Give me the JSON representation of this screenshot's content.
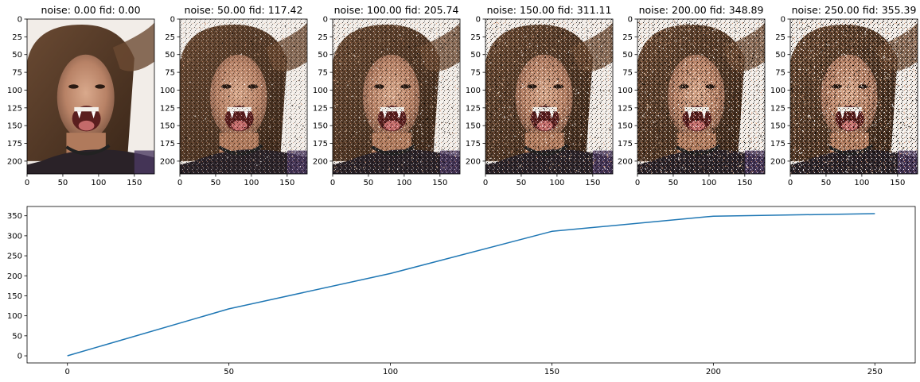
{
  "figure": {
    "panels": [
      {
        "title": "noise: 0.00 fid: 0.00",
        "noise_level": 0
      },
      {
        "title": "noise: 50.00 fid: 117.42",
        "noise_level": 50
      },
      {
        "title": "noise: 100.00 fid: 205.74",
        "noise_level": 100
      },
      {
        "title": "noise: 150.00 fid: 311.11",
        "noise_level": 150
      },
      {
        "title": "noise: 200.00 fid: 348.89",
        "noise_level": 200
      },
      {
        "title": "noise: 250.00 fid: 355.39",
        "noise_level": 250
      }
    ],
    "panel_axes": {
      "x_ticks": [
        "0",
        "50",
        "100",
        "150"
      ],
      "y_ticks": [
        "0",
        "25",
        "50",
        "75",
        "100",
        "125",
        "150",
        "175",
        "200"
      ],
      "x_range": [
        0,
        178
      ],
      "y_range": [
        218,
        0
      ]
    }
  },
  "chart_data": {
    "type": "line",
    "title": "",
    "xlabel": "",
    "ylabel": "",
    "x": [
      0,
      50,
      100,
      150,
      200,
      250
    ],
    "series": [
      {
        "values": [
          0.0,
          117.42,
          205.74,
          311.11,
          348.89,
          355.39
        ],
        "color": "#1f77b4"
      }
    ],
    "x_ticks": [
      0,
      50,
      100,
      150,
      200,
      250
    ],
    "y_ticks": [
      0,
      50,
      100,
      150,
      200,
      250,
      300,
      350
    ],
    "xlim": [
      -12.5,
      262.5
    ],
    "ylim": [
      -17.8,
      373.2
    ],
    "grid": false
  }
}
